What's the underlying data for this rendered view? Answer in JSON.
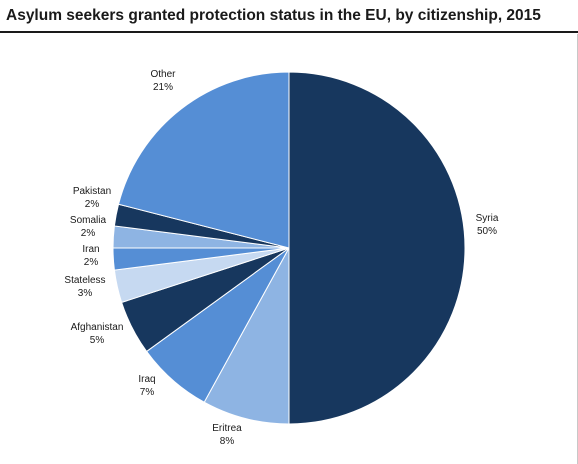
{
  "chart_data": {
    "type": "pie",
    "title": "Asylum seekers granted protection status in the EU, by citizenship, 2015",
    "slices": [
      {
        "label": "Syria",
        "value": 50,
        "value_label": "50%",
        "color": "#17375e"
      },
      {
        "label": "Eritrea",
        "value": 8,
        "value_label": "8%",
        "color": "#8eb4e3"
      },
      {
        "label": "Iraq",
        "value": 7,
        "value_label": "7%",
        "color": "#558ed5"
      },
      {
        "label": "Afghanistan",
        "value": 5,
        "value_label": "5%",
        "color": "#17375e"
      },
      {
        "label": "Stateless",
        "value": 3,
        "value_label": "3%",
        "color": "#c6d9f1"
      },
      {
        "label": "Iran",
        "value": 2,
        "value_label": "2%",
        "color": "#558ed5"
      },
      {
        "label": "Somalia",
        "value": 2,
        "value_label": "2%",
        "color": "#8eb4e3"
      },
      {
        "label": "Pakistan",
        "value": 2,
        "value_label": "2%",
        "color": "#17375e"
      },
      {
        "label": "Other",
        "value": 21,
        "value_label": "21%",
        "color": "#558ed5"
      }
    ],
    "start": "12 o'clock",
    "direction": "clockwise",
    "legend": "none (labels beside slices)"
  }
}
